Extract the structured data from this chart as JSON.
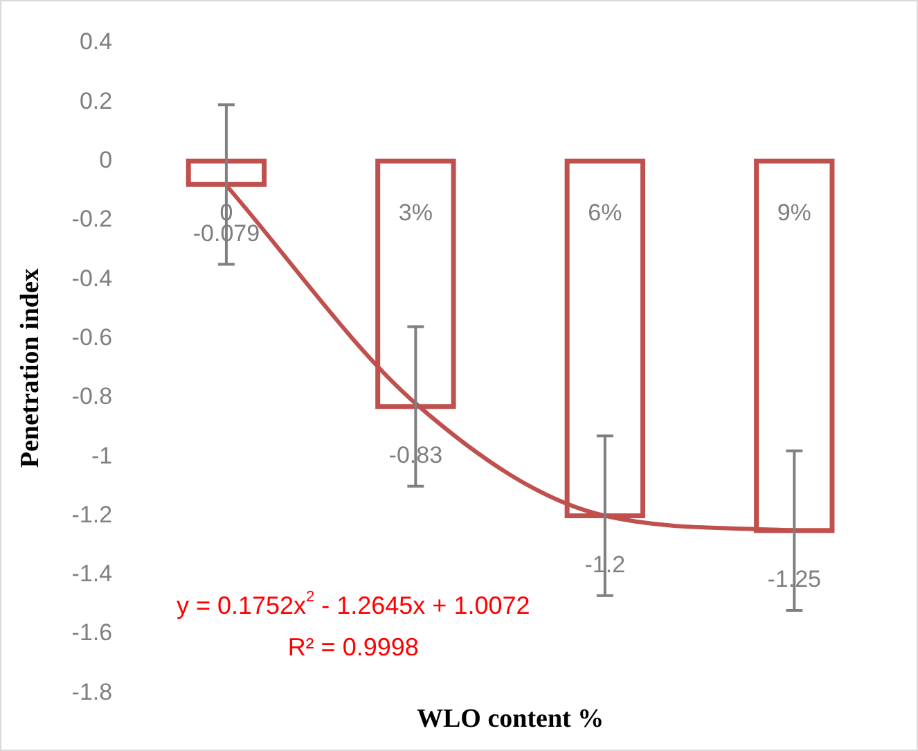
{
  "chart_data": {
    "type": "bar",
    "xlabel": "WLO content %",
    "ylabel": "Penetration index",
    "categories": [
      "0",
      "3%",
      "6%",
      "9%"
    ],
    "tick_labels": "y",
    "marker": "none",
    "ylim": [
      -1.8,
      0.4
    ],
    "yticks": [
      -1.8,
      -1.6,
      -1.4,
      -1.2,
      -1,
      -0.8,
      -0.6,
      -0.4,
      -0.2,
      0,
      0.2,
      0.4
    ],
    "series": [
      {
        "color": "#c0504d",
        "values": [
          -0.079,
          -0.83,
          -1.2,
          -1.25
        ],
        "errors": [
          0.27,
          0.27,
          0.27,
          0.27
        ],
        "value_labels": [
          "-0.079",
          "-0.83",
          "-1.2",
          "-1.25"
        ]
      },
      {
        "type": "line",
        "color": "#c0504d",
        "x": [
          "0",
          "3%",
          "6%",
          "9%"
        ],
        "values": [
          -0.082,
          -0.82,
          -1.2,
          -1.25
        ]
      }
    ],
    "annotations": [
      "y = 0.1752x$^{2}$ - 1.2645x + 1.0072",
      "R² = 0.9998"
    ]
  }
}
